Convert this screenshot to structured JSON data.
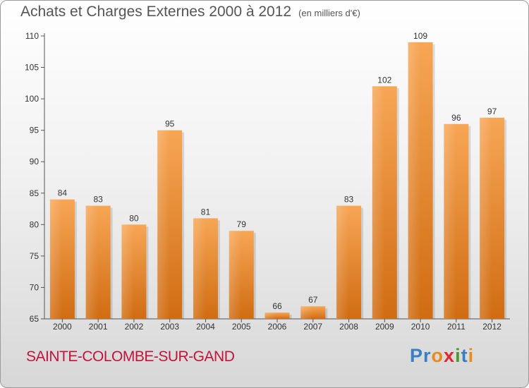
{
  "title": "Achats et Charges Externes 2000 à 2012",
  "subtitle": "(en milliers d'€)",
  "commune": "SAINTE-COLOMBE-SUR-GAND",
  "logo": {
    "letters": [
      "P",
      "r",
      "o",
      "x",
      "i",
      "t",
      "i"
    ],
    "colors": [
      "#3a7fc4",
      "#3a7fc4",
      "#e88b1c",
      "#e3262d",
      "#4a9a2c",
      "#3a7fc4",
      "#e88b1c"
    ]
  },
  "chart_data": {
    "type": "bar",
    "title": "Achats et Charges Externes 2000 à 2012",
    "categories": [
      "2000",
      "2001",
      "2002",
      "2003",
      "2004",
      "2005",
      "2006",
      "2007",
      "2008",
      "2009",
      "2010",
      "2011",
      "2012"
    ],
    "values": [
      84,
      83,
      80,
      95,
      81,
      79,
      66,
      67,
      83,
      102,
      109,
      96,
      97
    ],
    "yticks": [
      65,
      70,
      75,
      80,
      85,
      90,
      95,
      100,
      105,
      110
    ],
    "ylim": [
      65,
      110
    ],
    "grid": false,
    "bar_color": "#f2933a"
  }
}
